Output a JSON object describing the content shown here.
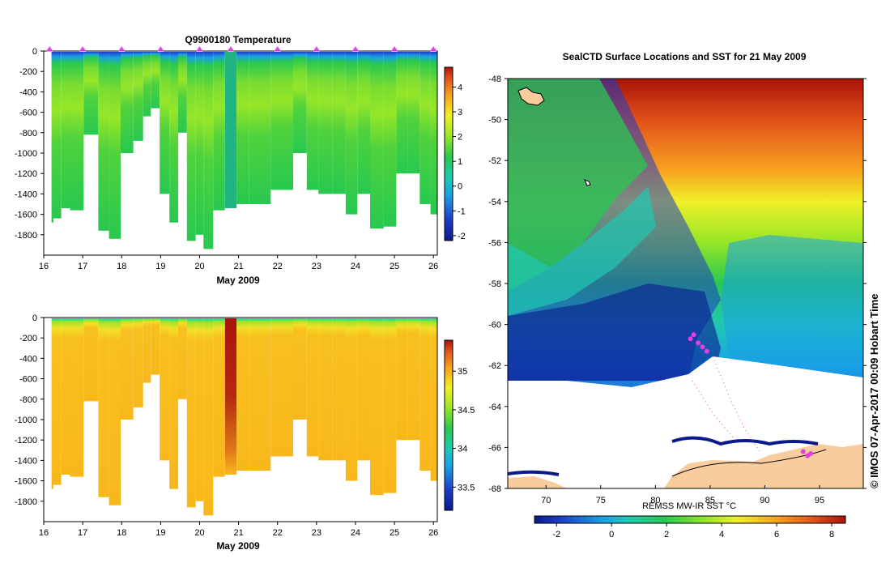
{
  "chart_data": [
    {
      "type": "heatmap",
      "title": "Q9900180  Temperature",
      "xlabel": "May 2009",
      "ylabel": "",
      "xlim": [
        16,
        26.1
      ],
      "ylim": [
        -2000,
        0
      ],
      "x_ticks": [
        16,
        17,
        18,
        19,
        20,
        21,
        22,
        23,
        24,
        25,
        26
      ],
      "y_ticks": [
        0,
        -200,
        -400,
        -600,
        -800,
        -1000,
        -1200,
        -1400,
        -1600,
        -1800
      ],
      "colorbar": {
        "min": -2.2,
        "max": 4.8,
        "ticks": [
          -2,
          -1,
          0,
          1,
          2,
          3,
          4
        ]
      },
      "markers_x": [
        16.15,
        17,
        18,
        19,
        20,
        20.8,
        22,
        23,
        24,
        25,
        26
      ],
      "columns": [
        {
          "x": 16.15,
          "depth": 1680
        },
        {
          "x": 16.35,
          "depth": 1640
        },
        {
          "x": 16.55,
          "depth": 1540
        },
        {
          "x": 16.8,
          "depth": 1560
        },
        {
          "x": 17.25,
          "depth": 820
        },
        {
          "x": 17.55,
          "depth": 1760
        },
        {
          "x": 17.8,
          "depth": 1840
        },
        {
          "x": 18.15,
          "depth": 1000
        },
        {
          "x": 18.45,
          "depth": 880
        },
        {
          "x": 18.65,
          "depth": 640
        },
        {
          "x": 18.85,
          "depth": 560
        },
        {
          "x": 19.1,
          "depth": 1400
        },
        {
          "x": 19.35,
          "depth": 1680
        },
        {
          "x": 19.55,
          "depth": 800
        },
        {
          "x": 19.8,
          "depth": 1860
        },
        {
          "x": 20.0,
          "depth": 1800
        },
        {
          "x": 20.2,
          "depth": 1940
        },
        {
          "x": 20.5,
          "depth": 1560
        },
        {
          "x": 20.8,
          "depth": 1540,
          "special": true
        },
        {
          "x": 21.1,
          "depth": 1500
        },
        {
          "x": 21.45,
          "depth": 1500
        },
        {
          "x": 22.2,
          "depth": 1360
        },
        {
          "x": 22.6,
          "depth": 1000
        },
        {
          "x": 22.9,
          "depth": 1360
        },
        {
          "x": 23.2,
          "depth": 1400
        },
        {
          "x": 23.6,
          "depth": 1400
        },
        {
          "x": 23.9,
          "depth": 1600
        },
        {
          "x": 24.2,
          "depth": 1400
        },
        {
          "x": 24.55,
          "depth": 1740
        },
        {
          "x": 24.9,
          "depth": 1720
        },
        {
          "x": 25.2,
          "depth": 1200
        },
        {
          "x": 25.5,
          "depth": 1200
        },
        {
          "x": 25.8,
          "depth": 1500
        },
        {
          "x": 26.05,
          "depth": 1600
        }
      ]
    },
    {
      "type": "heatmap",
      "title": "",
      "xlabel": "May 2009",
      "ylabel": "",
      "xlim": [
        16,
        26.1
      ],
      "ylim": [
        -2000,
        0
      ],
      "x_ticks": [
        16,
        17,
        18,
        19,
        20,
        21,
        22,
        23,
        24,
        25,
        26
      ],
      "y_ticks": [
        0,
        -200,
        -400,
        -600,
        -800,
        -1000,
        -1200,
        -1400,
        -1600,
        -1800
      ],
      "colorbar": {
        "min": 33.2,
        "max": 35.4,
        "ticks": [
          33.5,
          34,
          34.5,
          35
        ]
      }
    },
    {
      "type": "heatmap",
      "title": "SealCTD Surface Locations and SST for 21 May 2009",
      "xlabel": "REMSS MW-IR SST °C",
      "ylabel": "",
      "xlim": [
        66.5,
        99
      ],
      "ylim": [
        -68,
        -48
      ],
      "x_ticks": [
        70,
        75,
        80,
        85,
        90,
        95
      ],
      "y_ticks": [
        -48,
        -50,
        -52,
        -54,
        -56,
        -58,
        -60,
        -62,
        -64,
        -66,
        -68
      ],
      "colorbar": {
        "min": -2.8,
        "max": 8.5,
        "ticks": [
          -2,
          0,
          2,
          4,
          6,
          8
        ]
      },
      "seal_positions": [
        {
          "lon": 83.5,
          "lat": -60.5
        },
        {
          "lon": 83.9,
          "lat": -60.9
        },
        {
          "lon": 84.3,
          "lat": -61.1
        },
        {
          "lon": 83.2,
          "lat": -60.7
        },
        {
          "lon": 84.7,
          "lat": -61.3
        },
        {
          "lon": 93.5,
          "lat": -66.2
        },
        {
          "lon": 93.9,
          "lat": -66.4
        },
        {
          "lon": 94.2,
          "lat": -66.3
        }
      ]
    }
  ],
  "stamp": "© IMOS 07-Apr-2017 00:09 Hobart Time"
}
